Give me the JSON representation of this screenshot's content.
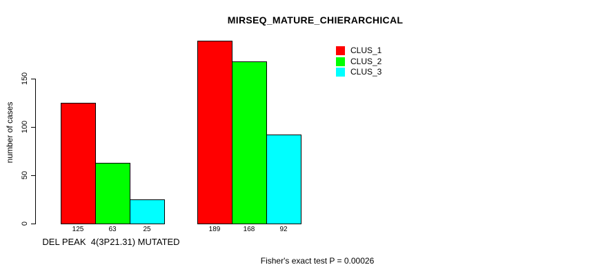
{
  "chart_data": {
    "type": "bar",
    "title": "MIRSEQ_MATURE_CHIERARCHICAL",
    "ylabel": "number of cases",
    "xlabel": "DEL PEAK  4(3P21.31) MUTATED",
    "yticks": [
      0,
      50,
      100,
      150
    ],
    "ylim": [
      0,
      196
    ],
    "grid": false,
    "legend_position": "top-right",
    "groups": [
      "DEL PEAK  4(3P21.31) MUTATED",
      ""
    ],
    "series": [
      {
        "name": "CLUS_1",
        "color": "#FF0000",
        "values": [
          125,
          189
        ]
      },
      {
        "name": "CLUS_2",
        "color": "#00FF00",
        "values": [
          63,
          168
        ]
      },
      {
        "name": "CLUS_3",
        "color": "#00FFFF",
        "values": [
          25,
          92
        ]
      }
    ],
    "footnote": "Fisher's exact test P = 0.00026"
  }
}
